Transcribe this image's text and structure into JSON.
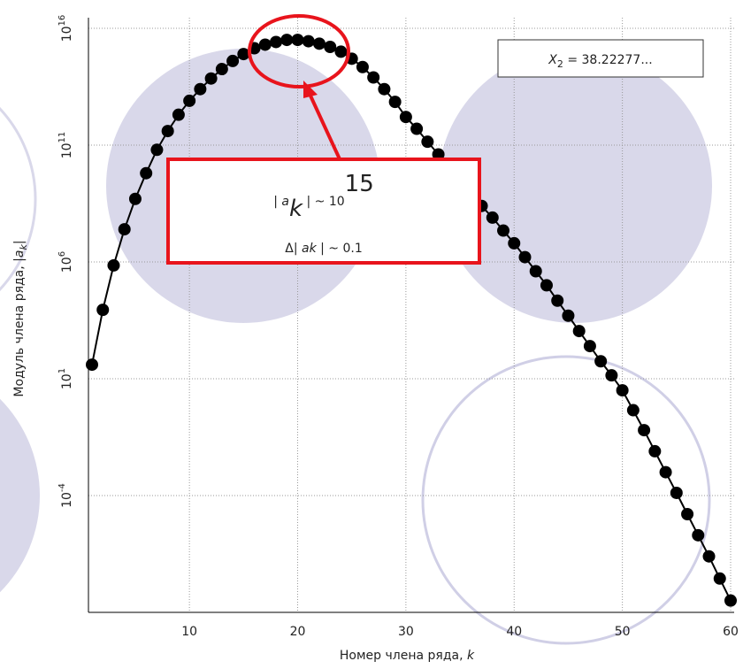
{
  "chart_data": {
    "type": "scatter-line",
    "xlabel": "Номер члена ряда, ",
    "xlabel_var": "k",
    "ylabel": "Модуль члена ряда, |",
    "ylabel_var": "a",
    "ylabel_sub": "k",
    "ylabel_end": "|",
    "log_y": true,
    "grid": true,
    "color": "#000000",
    "xlim": [
      1,
      60
    ],
    "xticks": [
      10,
      20,
      30,
      40,
      50,
      60
    ],
    "ylim": [
      1e-09,
      1e+16
    ],
    "yticks": [
      {
        "value": 0.0001,
        "label": "10",
        "exponent": "-4"
      },
      {
        "value": 10,
        "label": "10",
        "exponent": "1"
      },
      {
        "value": 1000000.0,
        "label": "10",
        "exponent": "6"
      },
      {
        "value": 100000000000.0,
        "label": "10",
        "exponent": "11"
      },
      {
        "value": 1e+16,
        "label": "10",
        "exponent": "16"
      }
    ],
    "x": [
      1,
      2,
      3,
      4,
      5,
      6,
      7,
      8,
      9,
      10,
      11,
      12,
      13,
      14,
      15,
      16,
      17,
      18,
      19,
      20,
      21,
      22,
      23,
      24,
      25,
      26,
      27,
      28,
      29,
      30,
      31,
      32,
      33,
      34,
      35,
      36,
      37,
      38,
      39,
      40,
      41,
      42,
      43,
      44,
      45,
      46,
      47,
      48,
      49,
      50,
      51,
      52,
      53,
      54,
      55,
      56,
      57,
      58,
      59,
      60
    ],
    "values": [
      40,
      8900.0,
      710000.0,
      25000000.0,
      500000000.0,
      6300000000.0,
      63000000000.0,
      400000000000.0,
      2000000000000.0,
      7900000000000.0,
      25000000000000.0,
      71000000000000.0,
      180000000000000.0,
      400000000000000.0,
      790000000000000.0,
      1400000000000000.0,
      2000000000000000.0,
      2600000000000000.0,
      3200000000000000.0,
      3200000000000000.0,
      2800000000000000.0,
      2200000000000000.0,
      1600000000000000.0,
      1000000000000000.0,
      500000000000000.0,
      220000000000000.0,
      79000000000000.0,
      25000000000000.0,
      7100000000000.0,
      1600000000000.0,
      500000000000.0,
      140000000000.0,
      40000000000.0,
      11000000000.0,
      3200000000.0,
      890000000.0,
      250000000.0,
      79000000.0,
      22000000.0,
      6300000.0,
      1600000.0,
      400000.0,
      100000.0,
      22000.0,
      5000.0,
      1100.0,
      250,
      56,
      14,
      3.2,
      0.45,
      0.063,
      0.0079,
      0.001,
      0.00013,
      1.6e-05,
      2e-06,
      2.5e-07,
      2.8e-08,
      3.2e-09
    ],
    "legend_box": {
      "variable": "X",
      "subscript": "2",
      "text": " = 38.22277..."
    },
    "callout": {
      "line1_open": "| ",
      "line1_var": "a",
      "line1_sub": "k",
      "line1_mid": " | ~ 10",
      "line1_exp": "15",
      "line2_open": "Δ| ",
      "line2_var": "ak",
      "line2_end": " | ~ 0.1"
    }
  }
}
